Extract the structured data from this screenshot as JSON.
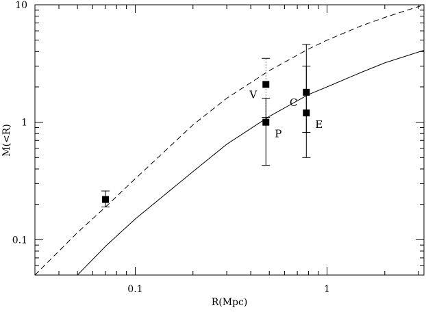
{
  "chart_data": {
    "type": "scatter",
    "title": "",
    "xlabel": "R(Mpc)",
    "ylabel": "M(<R)",
    "xscale": "log",
    "yscale": "log",
    "xlim": [
      0.03,
      3.2
    ],
    "ylim": [
      0.05,
      10
    ],
    "x_ticks": [
      {
        "value": 0.1,
        "label": "0.1"
      },
      {
        "value": 1,
        "label": "1"
      }
    ],
    "y_ticks": [
      {
        "value": 0.1,
        "label": "0.1"
      },
      {
        "value": 1,
        "label": "1"
      },
      {
        "value": 10,
        "label": "10"
      }
    ],
    "grid": false,
    "points": [
      {
        "x": 0.07,
        "y": 0.22,
        "y_low": 0.19,
        "y_high": 0.26,
        "label": "",
        "label_side": "none",
        "bar_style": "solid"
      },
      {
        "x": 0.48,
        "y": 2.1,
        "y_low": 1.1,
        "y_high": 3.5,
        "label": "V",
        "label_side": "left",
        "bar_style": "dotted"
      },
      {
        "x": 0.48,
        "y": 1.0,
        "y_low": 0.43,
        "y_high": 1.6,
        "label": "P",
        "label_side": "right",
        "bar_style": "solid"
      },
      {
        "x": 0.78,
        "y": 1.8,
        "y_low": 0.82,
        "y_high": 4.6,
        "label": "C",
        "label_side": "left",
        "bar_style": "solid"
      },
      {
        "x": 0.78,
        "y": 1.2,
        "y_low": 0.5,
        "y_high": 3.0,
        "label": "E",
        "label_side": "right",
        "bar_style": "solid"
      }
    ],
    "curves": [
      {
        "style": "dashed",
        "x": [
          0.03,
          0.05,
          0.07,
          0.1,
          0.2,
          0.3,
          0.5,
          0.8,
          1.0,
          1.5,
          2.0,
          3.2
        ],
        "y": [
          0.05,
          0.115,
          0.19,
          0.33,
          0.95,
          1.6,
          2.75,
          4.2,
          5.0,
          6.6,
          7.8,
          10.0
        ]
      },
      {
        "style": "solid",
        "x": [
          0.05,
          0.07,
          0.1,
          0.2,
          0.3,
          0.5,
          0.8,
          1.0,
          1.5,
          2.0,
          3.2
        ],
        "y": [
          0.05,
          0.088,
          0.15,
          0.38,
          0.65,
          1.12,
          1.72,
          2.0,
          2.65,
          3.2,
          4.1
        ]
      }
    ]
  }
}
